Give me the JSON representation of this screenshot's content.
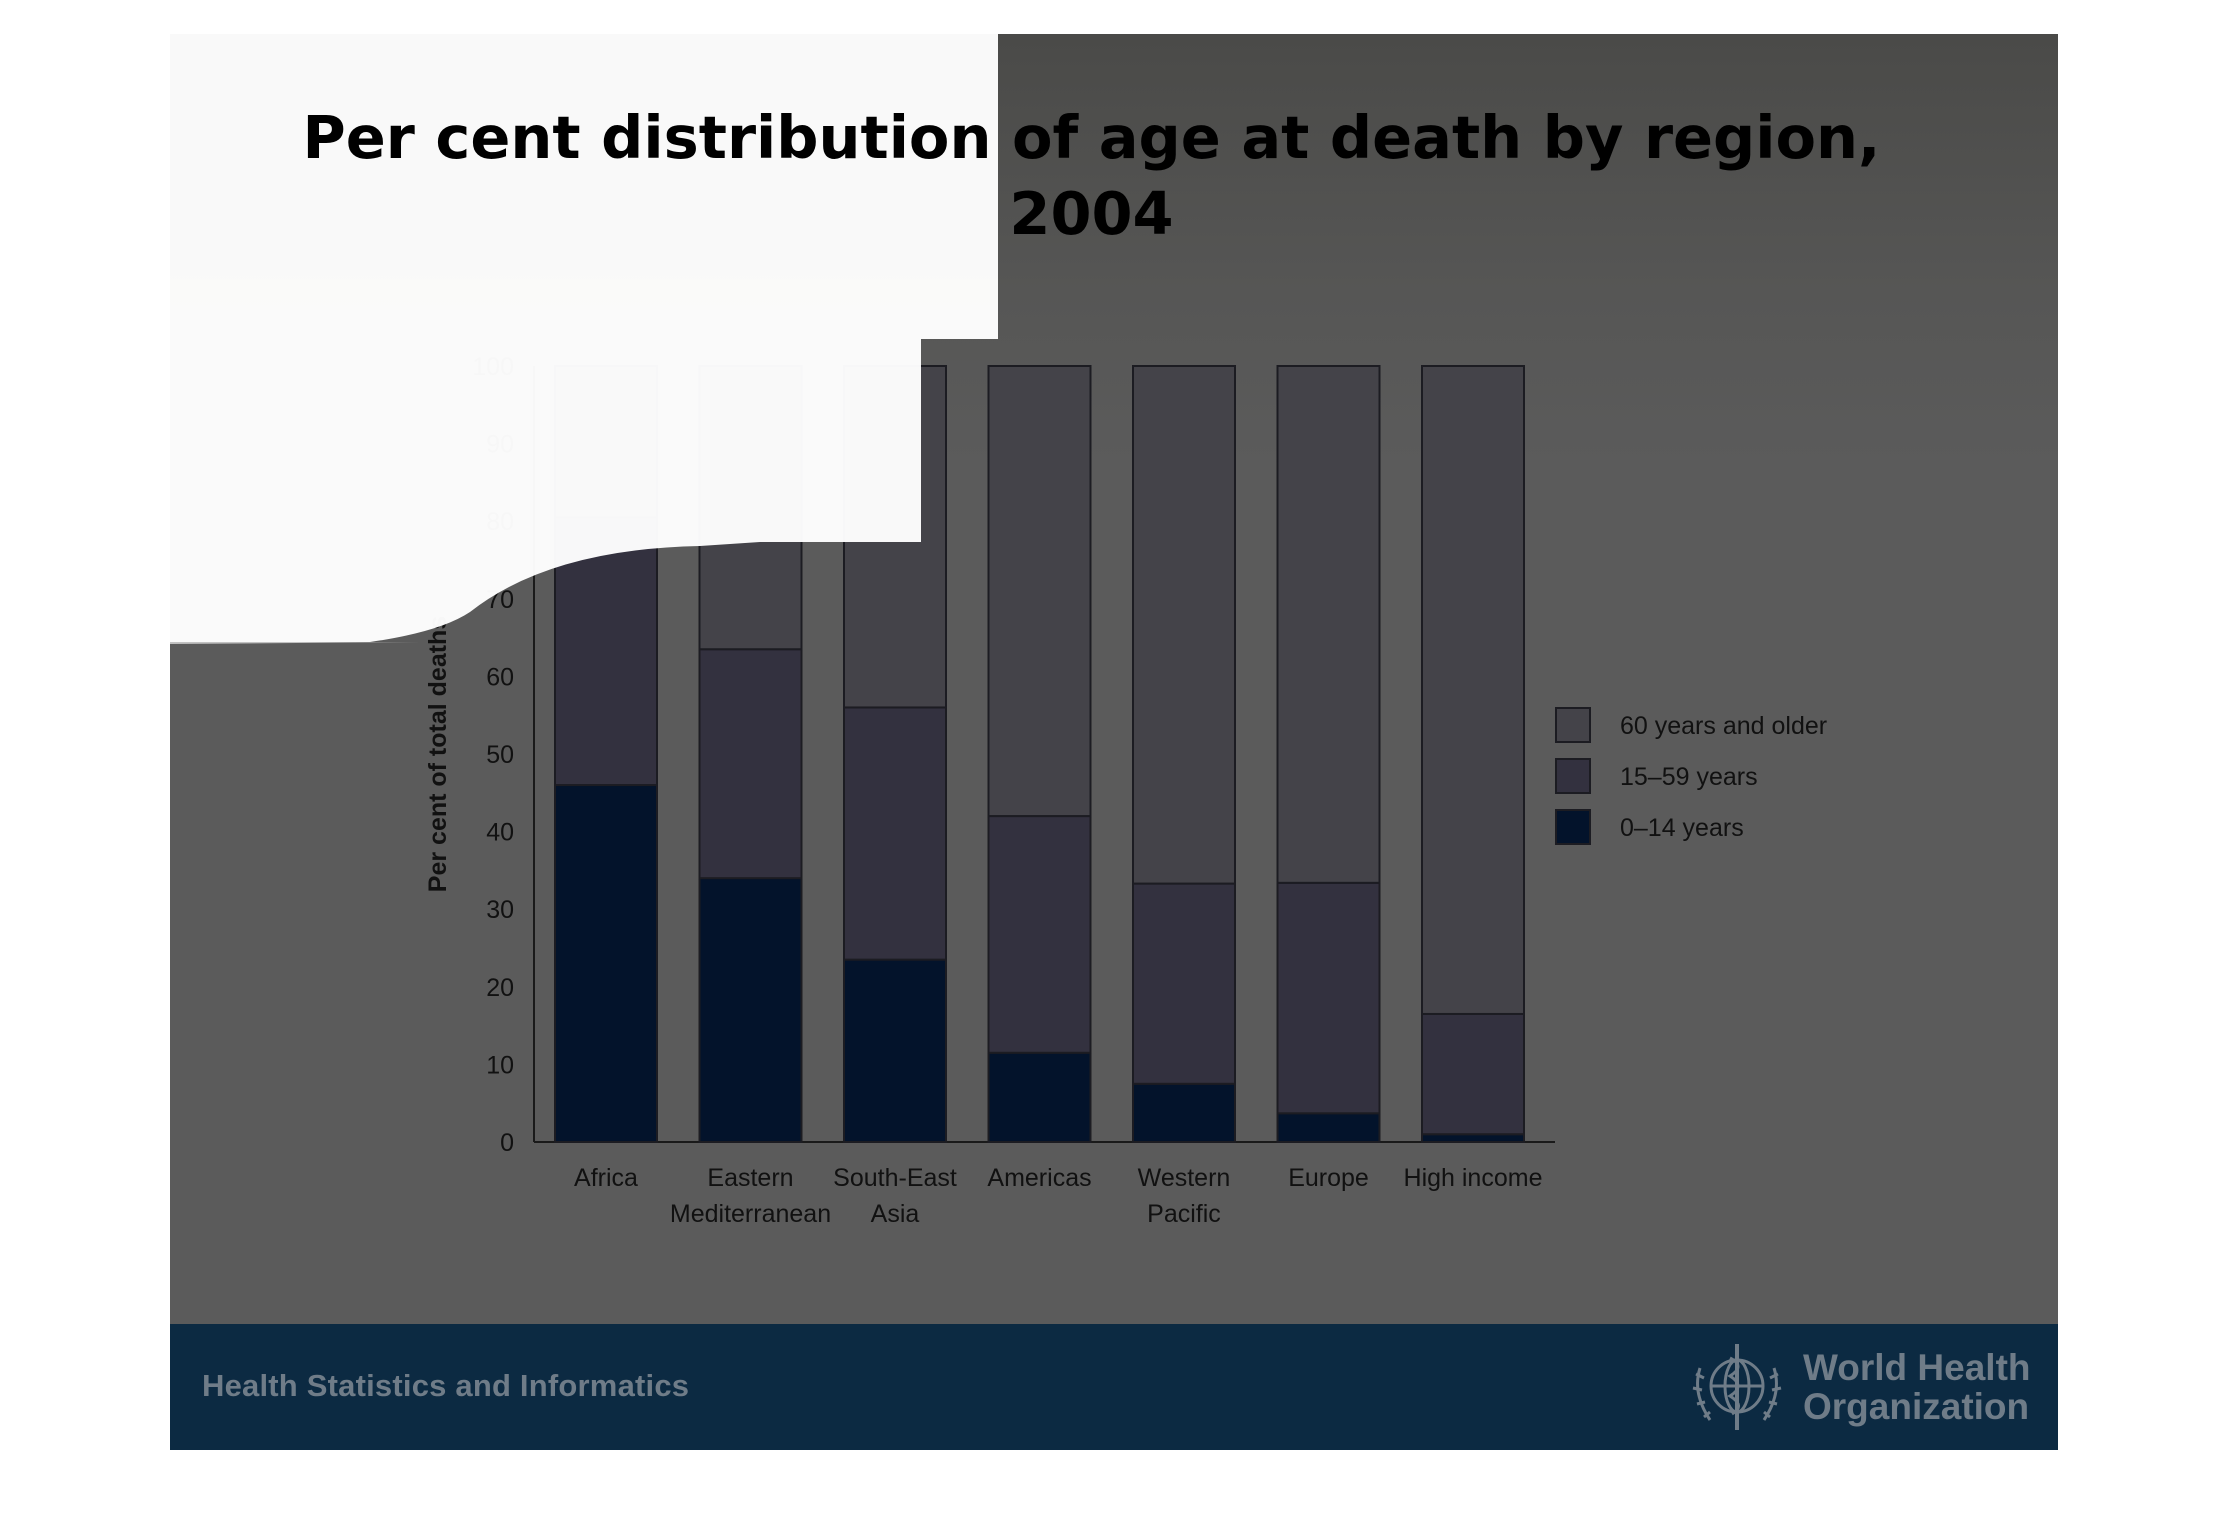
{
  "slide": {
    "title_line1": "Per cent distribution of age at death by region,",
    "title_line2": "2004",
    "footer_text": "Health Statistics and Informatics",
    "org_name_line1": "World Health",
    "org_name_line2": "Organization",
    "colors": {
      "background": "#5b5b5b",
      "footer": "#0c2a42",
      "footer_text": "#6f7c88"
    }
  },
  "chart_data": {
    "type": "bar",
    "stacked": true,
    "title": "",
    "xlabel": "",
    "ylabel": "Per cent of total deaths",
    "ylim": [
      0,
      100
    ],
    "yticks": [
      0,
      10,
      20,
      30,
      40,
      50,
      60,
      70,
      80,
      90,
      100
    ],
    "categories": [
      [
        "Africa"
      ],
      [
        "Eastern",
        "Mediterranean"
      ],
      [
        "South-East",
        "Asia"
      ],
      [
        "Americas"
      ],
      [
        "Western",
        "Pacific"
      ],
      [
        "Europe"
      ],
      [
        "High income"
      ]
    ],
    "series": [
      {
        "name": "0–14 years",
        "color": "#03132b",
        "values": [
          46,
          34,
          23.5,
          11.5,
          7.5,
          3.7,
          1
        ]
      },
      {
        "name": "15–59 years",
        "color": "#33313f",
        "values": [
          34.5,
          29.5,
          32.5,
          30.5,
          25.8,
          29.7,
          15.5
        ]
      },
      {
        "name": "60 years and older",
        "color": "#444349",
        "values": [
          19.5,
          36.5,
          44,
          58,
          66.7,
          66.6,
          83.5
        ]
      }
    ],
    "legend": {
      "position": "right",
      "order": [
        "60 years and older",
        "15–59 years",
        "0–14 years"
      ]
    },
    "grid": false
  }
}
